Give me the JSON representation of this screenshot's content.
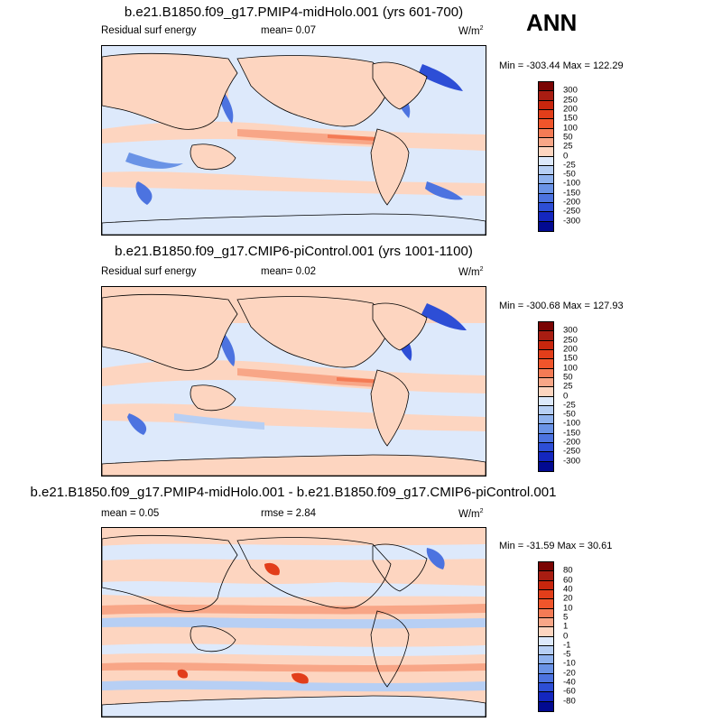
{
  "season": "ANN",
  "panels": [
    {
      "title": "b.e21.B1850.f09_g17.PMIP4-midHolo.001 (yrs 601-700)",
      "left_label": "Residual surf energy",
      "mid_label": "mean=   0.07",
      "units": "W/m",
      "units_sup": "2",
      "stats": "Min = -303.44 Max = 122.29",
      "colorbar_labels": [
        "300",
        "250",
        "200",
        "150",
        "100",
        "50",
        "25",
        "0",
        "-25",
        "-50",
        "-100",
        "-150",
        "-200",
        "-250",
        "-300"
      ],
      "colorbar_colors": [
        "#7a0403",
        "#a81d12",
        "#c9260d",
        "#e23e1a",
        "#f0552b",
        "#f47b55",
        "#f8a687",
        "#fdd5c0",
        "#dde9fb",
        "#b7cff4",
        "#8fb2ee",
        "#6a93e6",
        "#4c73e0",
        "#2d4ed6",
        "#1427bf",
        "#020a91"
      ]
    },
    {
      "title": "b.e21.B1850.f09_g17.CMIP6-piControl.001 (yrs 1001-1100)",
      "left_label": "Residual surf energy",
      "mid_label": "mean=   0.02",
      "units": "W/m",
      "units_sup": "2",
      "stats": "Min = -300.68 Max = 127.93",
      "colorbar_labels": [
        "300",
        "250",
        "200",
        "150",
        "100",
        "50",
        "25",
        "0",
        "-25",
        "-50",
        "-100",
        "-150",
        "-200",
        "-250",
        "-300"
      ],
      "colorbar_colors": [
        "#7a0403",
        "#a81d12",
        "#c9260d",
        "#e23e1a",
        "#f0552b",
        "#f47b55",
        "#f8a687",
        "#fdd5c0",
        "#dde9fb",
        "#b7cff4",
        "#8fb2ee",
        "#6a93e6",
        "#4c73e0",
        "#2d4ed6",
        "#1427bf",
        "#020a91"
      ]
    },
    {
      "title": "b.e21.B1850.f09_g17.PMIP4-midHolo.001 - b.e21.B1850.f09_g17.CMIP6-piControl.001",
      "left_label": "mean =  0.05",
      "mid_label": "rmse =   2.84",
      "units": "W/m",
      "units_sup": "2",
      "stats": "Min = -31.59 Max =  30.61",
      "colorbar_labels": [
        "80",
        "60",
        "40",
        "20",
        "10",
        "5",
        "1",
        "0",
        "-1",
        "-5",
        "-10",
        "-20",
        "-40",
        "-60",
        "-80"
      ],
      "colorbar_colors": [
        "#7a0403",
        "#a81d12",
        "#c9260d",
        "#e23e1a",
        "#f0552b",
        "#f47b55",
        "#f8a687",
        "#fdd5c0",
        "#dde9fb",
        "#b7cff4",
        "#8fb2ee",
        "#6a93e6",
        "#4c73e0",
        "#2d4ed6",
        "#1427bf",
        "#020a91"
      ]
    }
  ]
}
